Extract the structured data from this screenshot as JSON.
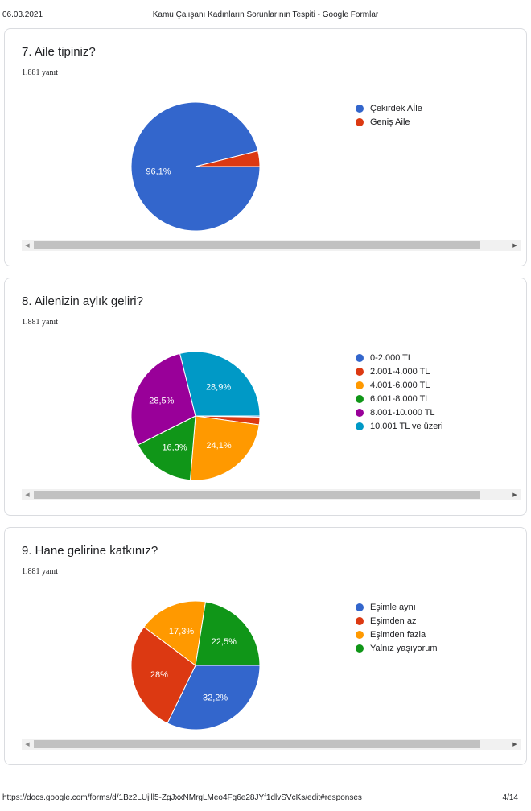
{
  "header": {
    "date": "06.03.2021",
    "title": "Kamu Çalışanı Kadınların Sorunlarının Tespiti - Google Formlar"
  },
  "footer": {
    "url": "https://docs.google.com/forms/d/1Bz2LUjlll5-ZgJxxNMrgLMeo4Fg6e28JYf1dlvSVcKs/edit#responses",
    "page": "4/14"
  },
  "chart_data": [
    {
      "type": "pie",
      "title": "7. Aile tipiniz?",
      "subtitle": "1.881 yanıt",
      "legend_position": "right",
      "categories": [
        "Çekirdek Aİle",
        "Geniş Aile"
      ],
      "values": [
        96.1,
        3.9
      ],
      "labels": [
        "96,1%",
        ""
      ],
      "colors": [
        "#3366cc",
        "#dc3912"
      ]
    },
    {
      "type": "pie",
      "title": "8. Ailenizin aylık geliri?",
      "subtitle": "1.881 yanıt",
      "legend_position": "right",
      "categories": [
        "0-2.000 TL",
        "2.001-4.000 TL",
        "4.001-6.000 TL",
        "6.001-8.000 TL",
        "8.001-10.000 TL",
        "10.001 TL ve üzeri"
      ],
      "values": [
        0.3,
        1.9,
        24.1,
        16.3,
        28.5,
        28.9
      ],
      "labels": [
        "",
        "",
        "24,1%",
        "16,3%",
        "28,5%",
        "28,9%"
      ],
      "colors": [
        "#3366cc",
        "#dc3912",
        "#ff9900",
        "#109618",
        "#990099",
        "#0099c6"
      ]
    },
    {
      "type": "pie",
      "title": "9. Hane gelirine katkınız?",
      "subtitle": "1.881 yanıt",
      "legend_position": "right",
      "categories": [
        "Eşimle aynı",
        "Eşimden az",
        "Eşimden fazla",
        "Yalnız yaşıyorum"
      ],
      "values": [
        32.2,
        28,
        17.3,
        22.5
      ],
      "labels": [
        "32,2%",
        "28%",
        "17,3%",
        "22,5%"
      ],
      "colors": [
        "#3366cc",
        "#dc3912",
        "#ff9900",
        "#109618"
      ]
    }
  ]
}
